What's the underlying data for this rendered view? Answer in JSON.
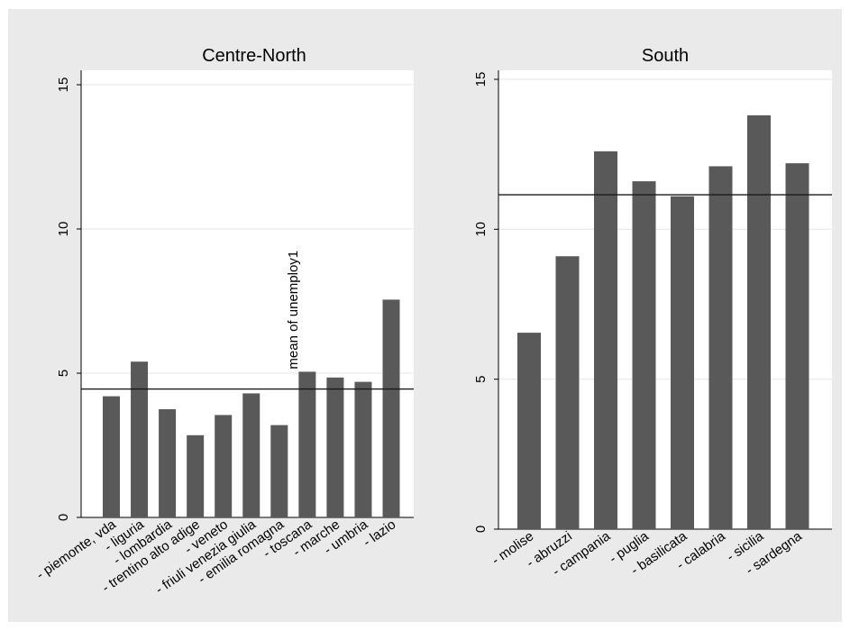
{
  "chart_data": [
    {
      "type": "bar",
      "title": "Centre-North",
      "categories": [
        "- piemonte, vda",
        "- liguria",
        "- lombardia",
        "- trentino alto adige",
        "- veneto",
        "- friuli venezia giulia",
        "- emilia romagna",
        "- toscana",
        "- marche",
        "- umbria",
        "- lazio"
      ],
      "values": [
        4.2,
        5.4,
        3.75,
        2.85,
        3.55,
        4.3,
        3.2,
        5.05,
        4.85,
        4.7,
        7.55
      ],
      "yticks": [
        "0",
        "5",
        "10",
        "15"
      ],
      "ylim": [
        0,
        15.5
      ],
      "reference_line": {
        "value": 4.45,
        "label": "mean of unemploy1"
      },
      "grid": true,
      "bar_color": "#595959"
    },
    {
      "type": "bar",
      "title": "South",
      "categories": [
        "- molise",
        "- abruzzi",
        "- campania",
        "- puglia",
        "- basilicata",
        "- calabria",
        "- sicilia",
        "- sardegna"
      ],
      "values": [
        6.55,
        9.1,
        12.6,
        11.6,
        11.1,
        12.1,
        13.8,
        12.2
      ],
      "yticks": [
        "0",
        "5",
        "10",
        "15"
      ],
      "ylim": [
        0,
        15.3
      ],
      "reference_line": {
        "value": 11.15
      },
      "grid": true,
      "bar_color": "#595959"
    }
  ]
}
